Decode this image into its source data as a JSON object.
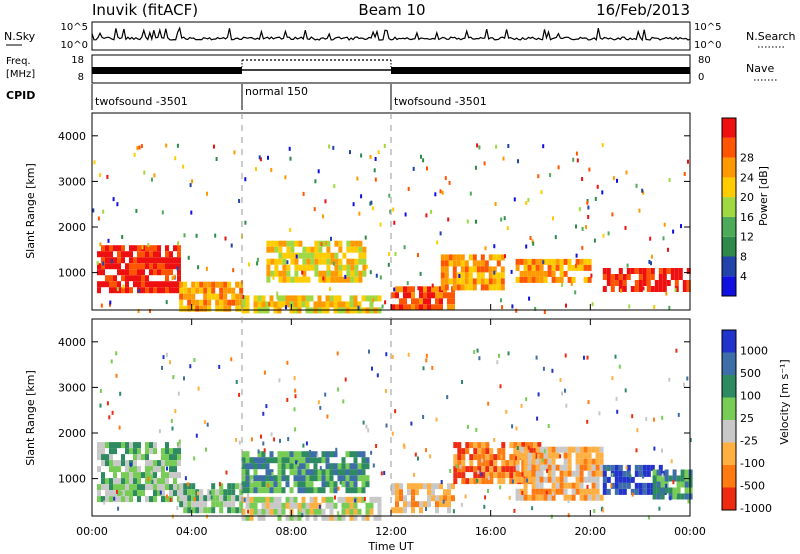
{
  "header": {
    "station": "Inuvik (fitACF)",
    "beam": "Beam 10",
    "date": "16/Feb/2013"
  },
  "nsky": {
    "label": "N.Sky",
    "ticks": [
      "10^5",
      "10^0"
    ],
    "right_label": "N.Search",
    "right_ticks": [
      "10^5",
      "10^0"
    ]
  },
  "freq": {
    "label_line1": "Freq.",
    "label_line2": "[MHz]",
    "ticks": [
      "18",
      "8"
    ],
    "right_label": "Nave",
    "right_ticks": [
      "80",
      "0"
    ]
  },
  "cpid": {
    "label": "CPID",
    "segments": [
      {
        "start_hour": 0,
        "end_hour": 6,
        "name": "twofsound -3501"
      },
      {
        "start_hour": 6,
        "end_hour": 12,
        "name": "normal 150"
      },
      {
        "start_hour": 12,
        "end_hour": 24,
        "name": "twofsound -3501"
      }
    ]
  },
  "time_axis": {
    "label": "Time UT",
    "ticks": [
      "00:00",
      "04:00",
      "08:00",
      "12:00",
      "16:00",
      "20:00",
      "00:00"
    ]
  },
  "chart_data": [
    {
      "type": "heatmap",
      "name": "power-panel",
      "ylabel": "Slant Range [km]",
      "xlim": [
        0,
        24
      ],
      "ylim": [
        180,
        4500
      ],
      "yticks": [
        1000,
        2000,
        3000,
        4000
      ],
      "colorbar": {
        "label": "Power [dB]",
        "ticks": [
          "4",
          "8",
          "12",
          "16",
          "20",
          "24",
          "28"
        ],
        "colors": [
          "#1010e0",
          "#2244aa",
          "#2d8a4a",
          "#4caa58",
          "#9fd840",
          "#ffcc00",
          "#ff9900",
          "#ff5500",
          "#ee1010"
        ]
      },
      "regions": [
        {
          "t": [
            0.2,
            3.5
          ],
          "r": [
            600,
            1600
          ],
          "level": 8
        },
        {
          "t": [
            3.5,
            6.0
          ],
          "r": [
            250,
            800
          ],
          "level": 6
        },
        {
          "t": [
            6.0,
            11.5
          ],
          "r": [
            200,
            500
          ],
          "level": 5
        },
        {
          "t": [
            7.0,
            11.0
          ],
          "r": [
            900,
            1700
          ],
          "level": 5
        },
        {
          "t": [
            12.0,
            14.5
          ],
          "r": [
            250,
            700
          ],
          "level": 7
        },
        {
          "t": [
            14.0,
            16.5
          ],
          "r": [
            700,
            1400
          ],
          "level": 6
        },
        {
          "t": [
            17.0,
            20.0
          ],
          "r": [
            800,
            1300
          ],
          "level": 6
        },
        {
          "t": [
            20.5,
            24.0
          ],
          "r": [
            600,
            1100
          ],
          "level": 8
        }
      ]
    },
    {
      "type": "heatmap",
      "name": "velocity-panel",
      "ylabel": "Slant Range [km]",
      "xlim": [
        0,
        24
      ],
      "ylim": [
        180,
        4500
      ],
      "yticks": [
        1000,
        2000,
        3000,
        4000
      ],
      "colorbar": {
        "label": "Velocity [m s⁻¹]",
        "ticks": [
          "1000",
          "500",
          "100",
          "25",
          "-25",
          "-100",
          "-500",
          "-1000"
        ],
        "colors": [
          "#2233cc",
          "#3d6ea8",
          "#2e8a60",
          "#77cc55",
          "#c8c8c8",
          "#ffb040",
          "#ff7a10",
          "#ee2a10"
        ]
      },
      "regions": [
        {
          "t": [
            0.2,
            3.5
          ],
          "r": [
            600,
            1800
          ],
          "level": 3
        },
        {
          "t": [
            3.5,
            6.0
          ],
          "r": [
            300,
            900
          ],
          "level": 3
        },
        {
          "t": [
            6.0,
            11.5
          ],
          "r": [
            200,
            600
          ],
          "level": 4
        },
        {
          "t": [
            6.0,
            11.0
          ],
          "r": [
            800,
            1600
          ],
          "level": 2
        },
        {
          "t": [
            12.0,
            14.5
          ],
          "r": [
            250,
            900
          ],
          "level": 5
        },
        {
          "t": [
            14.5,
            18.0
          ],
          "r": [
            900,
            1800
          ],
          "level": 6
        },
        {
          "t": [
            17.0,
            20.5
          ],
          "r": [
            600,
            1700
          ],
          "level": 5
        },
        {
          "t": [
            20.5,
            23.0
          ],
          "r": [
            700,
            1300
          ],
          "level": 0
        },
        {
          "t": [
            22.5,
            24.0
          ],
          "r": [
            600,
            1200
          ],
          "level": 2
        }
      ]
    }
  ]
}
